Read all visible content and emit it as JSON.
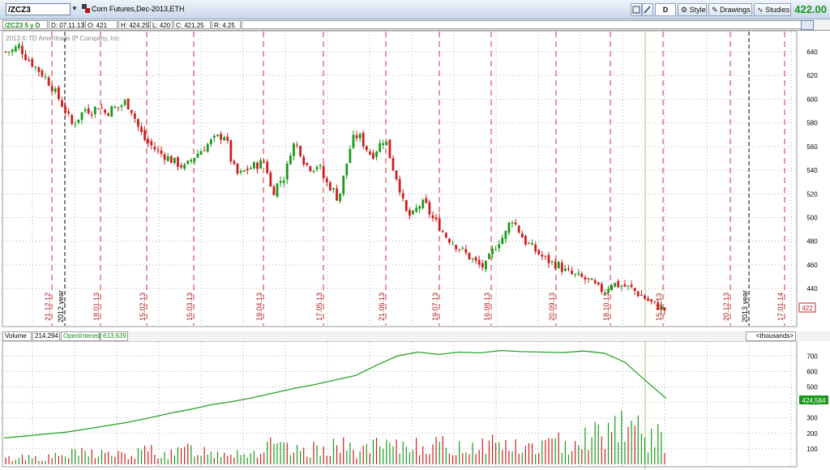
{
  "toolbar": {
    "symbol": "/ZCZ3",
    "description": "Corn Futures,Dec-2013,ETH",
    "aggregation": "D",
    "style_label": "Style",
    "drawings_label": "Drawings",
    "studies_label": "Studies",
    "last_price": "422.00"
  },
  "info": {
    "chart_id": "/ZCZ3 5 y D",
    "date": "D: 07.11.13",
    "open": "O: 421",
    "high": "H: 424.25",
    "low": "L: 420",
    "close": "C: 421.25",
    "range": "R: 4.25"
  },
  "copyright": "2013 © TD Ameritrade IP Company, Inc.",
  "volume_header": {
    "label": "Volume",
    "volume": "214,294",
    "oi_label": "OpenInterest",
    "oi": "613,639",
    "units": "<thousands>",
    "oi_marker": "424,584"
  },
  "price_marker": "422",
  "colors": {
    "up": "#1a9a1a",
    "down": "#cc1f1f",
    "oi_line": "#2aa12a",
    "grid": "#b0b0b0",
    "vline": "#cc3333",
    "accent": "#1a9a1a"
  },
  "chart_data": [
    {
      "type": "candlestick",
      "title": "",
      "y_ticks": [
        440,
        460,
        480,
        500,
        520,
        540,
        560,
        580,
        600,
        620,
        640
      ],
      "ylim": [
        410,
        655
      ],
      "date_labels": [
        "21.12.12",
        "18.01.13",
        "15.02.13",
        "15.03.13",
        "19.04.13",
        "17.05.13",
        "21.06.13",
        "19.07.13",
        "16.08.13",
        "20.09.13",
        "18.10.13",
        "15.11.13",
        "20.12.13",
        "17.01.14"
      ],
      "year_labels": [
        "2012 year",
        "2013 year"
      ],
      "series": [
        {
          "name": "close",
          "values": [
            640,
            641,
            645,
            636,
            630,
            624,
            618,
            610,
            600,
            590,
            578,
            585,
            592,
            590,
            595,
            588,
            592,
            593,
            598,
            590,
            575,
            565,
            560,
            555,
            552,
            548,
            545,
            542,
            550,
            555,
            560,
            565,
            568,
            570,
            545,
            535,
            540,
            543,
            545,
            548,
            520,
            530,
            535,
            562,
            560,
            545,
            542,
            545,
            530,
            525,
            515,
            540,
            565,
            570,
            560,
            552,
            560,
            568,
            545,
            530,
            505,
            500,
            510,
            512,
            500,
            494,
            485,
            480,
            475,
            470,
            465,
            460,
            458,
            470,
            480,
            485,
            500,
            490,
            480,
            475,
            470,
            465,
            462,
            460,
            455,
            452,
            450,
            448,
            445,
            440,
            438,
            445,
            443,
            442,
            440,
            436,
            432,
            428,
            425,
            422
          ]
        }
      ]
    },
    {
      "type": "line+bar",
      "title": "",
      "y_ticks": [
        100,
        200,
        300,
        400,
        500,
        600,
        700
      ],
      "ylim": [
        0,
        780
      ],
      "series": [
        {
          "name": "OpenInterest",
          "values": [
            170,
            182,
            196,
            208,
            228,
            250,
            272,
            300,
            330,
            355,
            385,
            405,
            430,
            460,
            490,
            515,
            545,
            575,
            640,
            700,
            725,
            710,
            725,
            720,
            735,
            728,
            725,
            722,
            732,
            718,
            660,
            540,
            425
          ]
        },
        {
          "name": "Volume",
          "values": [
            40,
            60,
            50,
            70,
            90,
            80,
            60,
            110,
            70,
            120,
            90,
            100,
            80,
            140,
            90,
            110,
            150,
            100,
            130,
            120,
            160,
            140,
            120,
            150,
            170,
            110,
            140,
            160,
            210,
            240,
            350,
            200,
            190
          ]
        }
      ]
    }
  ]
}
